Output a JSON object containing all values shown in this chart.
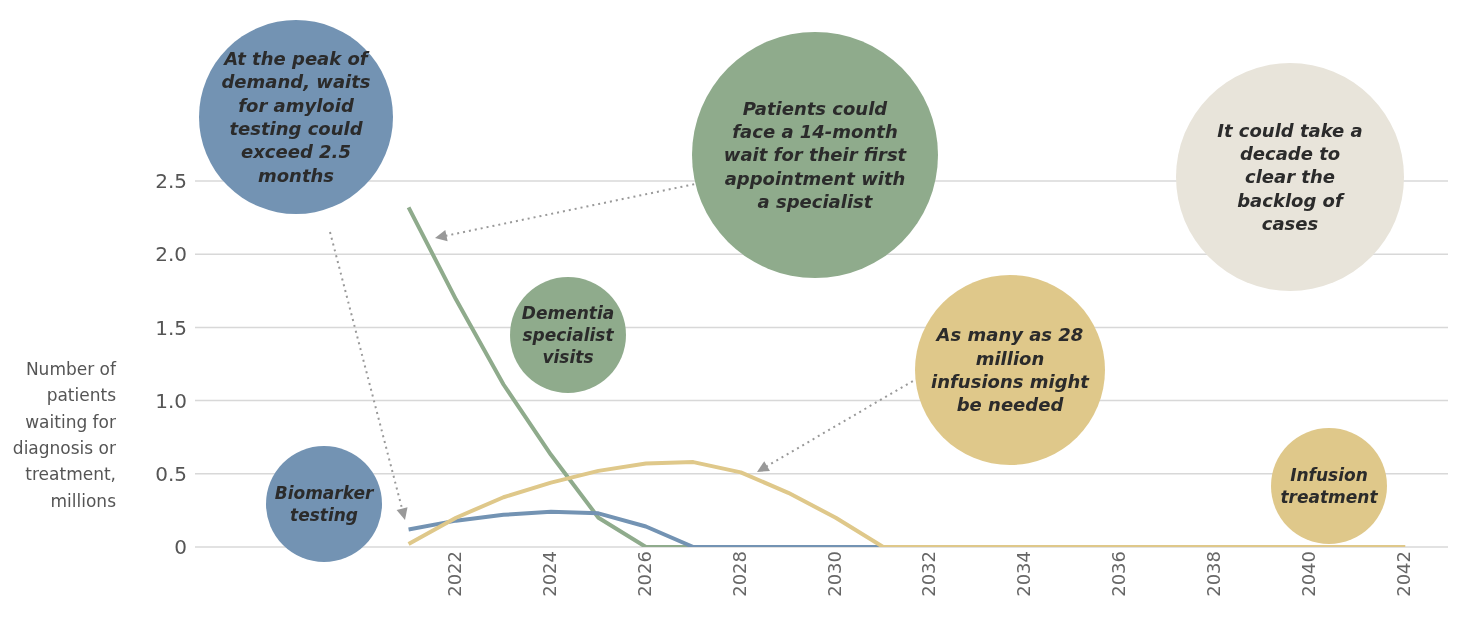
{
  "chart_data": {
    "type": "line",
    "ylabel": "Number of patients waiting for diagnosis or treatment, millions",
    "x": [
      2021,
      2022,
      2023,
      2024,
      2025,
      2026,
      2027,
      2028,
      2029,
      2030,
      2031,
      2032,
      2033,
      2034,
      2035,
      2036,
      2037,
      2038,
      2039,
      2040,
      2041,
      2042
    ],
    "series": [
      {
        "name": "Dementia specialist visits",
        "color": "#8fab8c",
        "values": [
          2.32,
          1.69,
          1.11,
          0.63,
          0.2,
          0,
          0,
          null,
          null,
          null,
          null,
          null,
          null,
          null,
          null,
          null,
          null,
          null,
          null,
          null,
          null,
          null
        ]
      },
      {
        "name": "Biomarker testing",
        "color": "#7393b3",
        "values": [
          0.12,
          0.18,
          0.22,
          0.24,
          0.23,
          0.14,
          0,
          0,
          0,
          0,
          0,
          null,
          null,
          null,
          null,
          null,
          null,
          null,
          null,
          null,
          null,
          null
        ]
      },
      {
        "name": "Infusion treatment",
        "color": "#dfc88a",
        "values": [
          0.02,
          0.2,
          0.34,
          0.44,
          0.52,
          0.57,
          0.58,
          0.51,
          0.37,
          0.2,
          0,
          0,
          0,
          0,
          0,
          0,
          0,
          0,
          0,
          0,
          0,
          0
        ]
      }
    ],
    "xlim": [
      2016.5,
      2042.9
    ],
    "xticks": [
      2022,
      2024,
      2026,
      2028,
      2030,
      2032,
      2034,
      2036,
      2038,
      2040,
      2042
    ],
    "ylim": [
      0,
      2.5
    ],
    "yticks": [
      0,
      {
        "value": 0.5,
        "label": "0.5"
      },
      {
        "value": 1,
        "label": "1.0"
      },
      {
        "value": 1.5,
        "label": "1.5"
      },
      {
        "value": 2,
        "label": "2.0"
      },
      {
        "value": 2.5,
        "label": "2.5"
      }
    ],
    "grid": "y",
    "marker": "none",
    "line_style": "solid",
    "annotations": [
      "At the peak of demand, waits for amyloid testing could exceed 2.5 months",
      "Patients could face a 14-month wait for their first appointment with a specialist",
      "It could take a decade to clear the backlog of cases",
      "As many as 28 million infusions might be needed"
    ]
  }
}
